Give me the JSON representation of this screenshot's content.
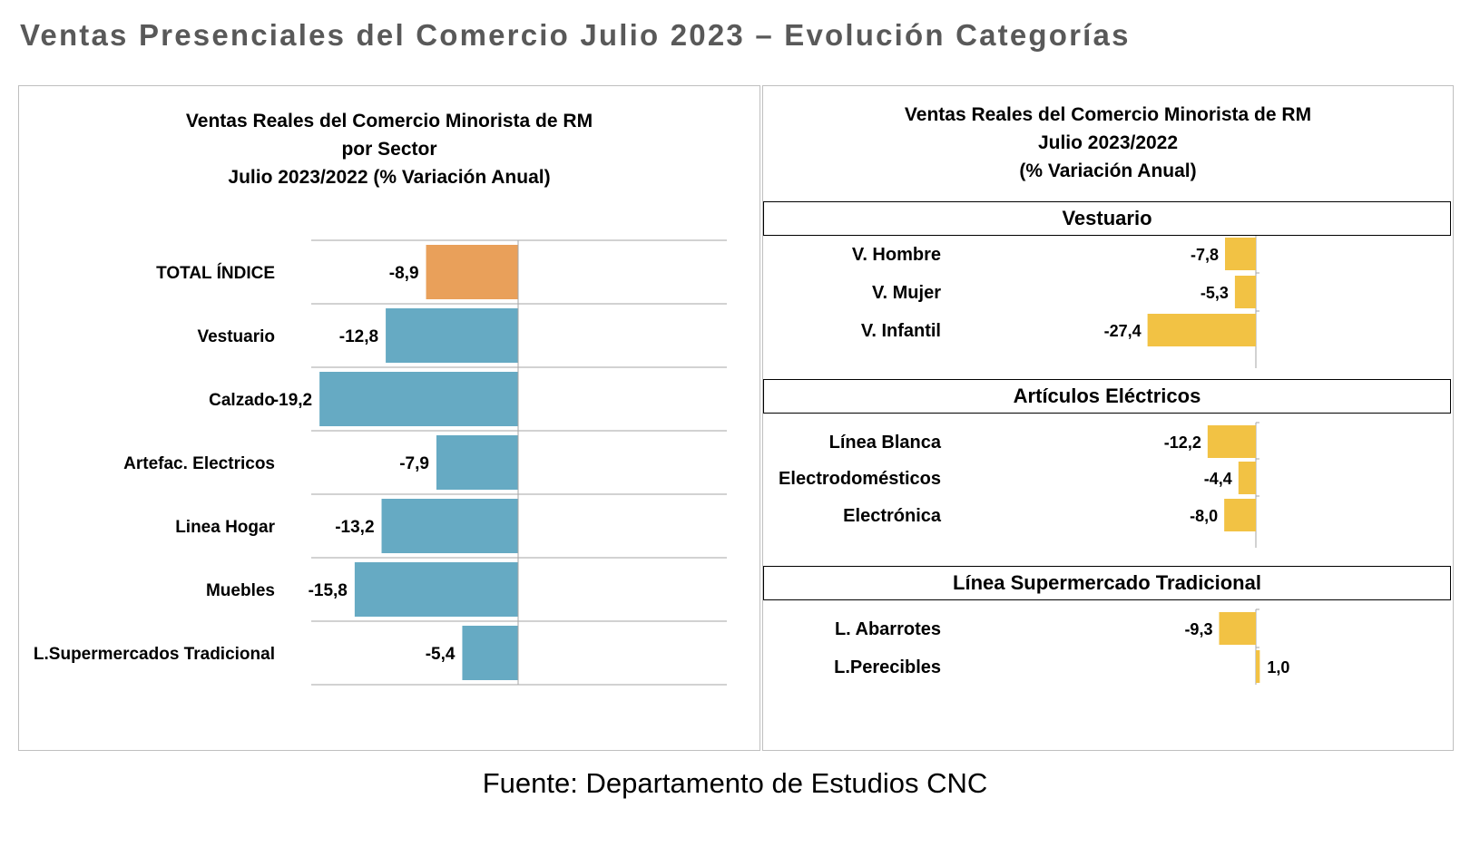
{
  "page_title": "Ventas Presenciales  del Comercio Julio  2023 – Evolución  Categorías",
  "footer": "Fuente: Departamento de Estudios CNC",
  "colors": {
    "total": "#E9A05A",
    "sector": "#66AAC3",
    "detail": "#F2C244",
    "grid": "#a6a6a6"
  },
  "chart_data": [
    {
      "type": "bar",
      "orientation": "horizontal",
      "title_lines": [
        "Ventas Reales del Comercio Minorista de RM",
        "por Sector",
        "Julio 2023/2022 (% Variación Anual)"
      ],
      "categories": [
        "TOTAL ÍNDICE",
        "Vestuario",
        "Calzado",
        "Artefac. Electricos",
        "Linea Hogar",
        "Muebles",
        "L.Supermercados Tradicional"
      ],
      "values": [
        -8.9,
        -12.8,
        -19.2,
        -7.9,
        -13.2,
        -15.8,
        -5.4
      ],
      "value_labels": [
        "-8,9",
        "-12,8",
        "-19,2",
        "-7,9",
        "-13,2",
        "-15,8",
        "-5,4"
      ],
      "highlight_first": true,
      "xlim": [
        -20,
        20
      ]
    },
    {
      "type": "bar",
      "orientation": "horizontal",
      "title_lines": [
        "Ventas Reales del Comercio Minorista de RM",
        "Julio 2023/2022",
        "(% Variación Anual)"
      ],
      "xlim": [
        -28,
        2
      ],
      "groups": [
        {
          "name": "Vestuario",
          "categories": [
            "V. Hombre",
            "V. Mujer",
            "V. Infantil"
          ],
          "values": [
            -7.8,
            -5.3,
            -27.4
          ],
          "value_labels": [
            "-7,8",
            "-5,3",
            "-27,4"
          ]
        },
        {
          "name": "Artículos Eléctricos",
          "categories": [
            "Línea Blanca",
            "Electrodomésticos",
            "Electrónica"
          ],
          "values": [
            -12.2,
            -4.4,
            -8.0
          ],
          "value_labels": [
            "-12,2",
            "-4,4",
            "-8,0"
          ]
        },
        {
          "name": "Línea Supermercado Tradicional",
          "categories": [
            "L. Abarrotes",
            "L.Perecibles"
          ],
          "values": [
            -9.3,
            1.0
          ],
          "value_labels": [
            "-9,3",
            "1,0"
          ]
        }
      ]
    }
  ]
}
